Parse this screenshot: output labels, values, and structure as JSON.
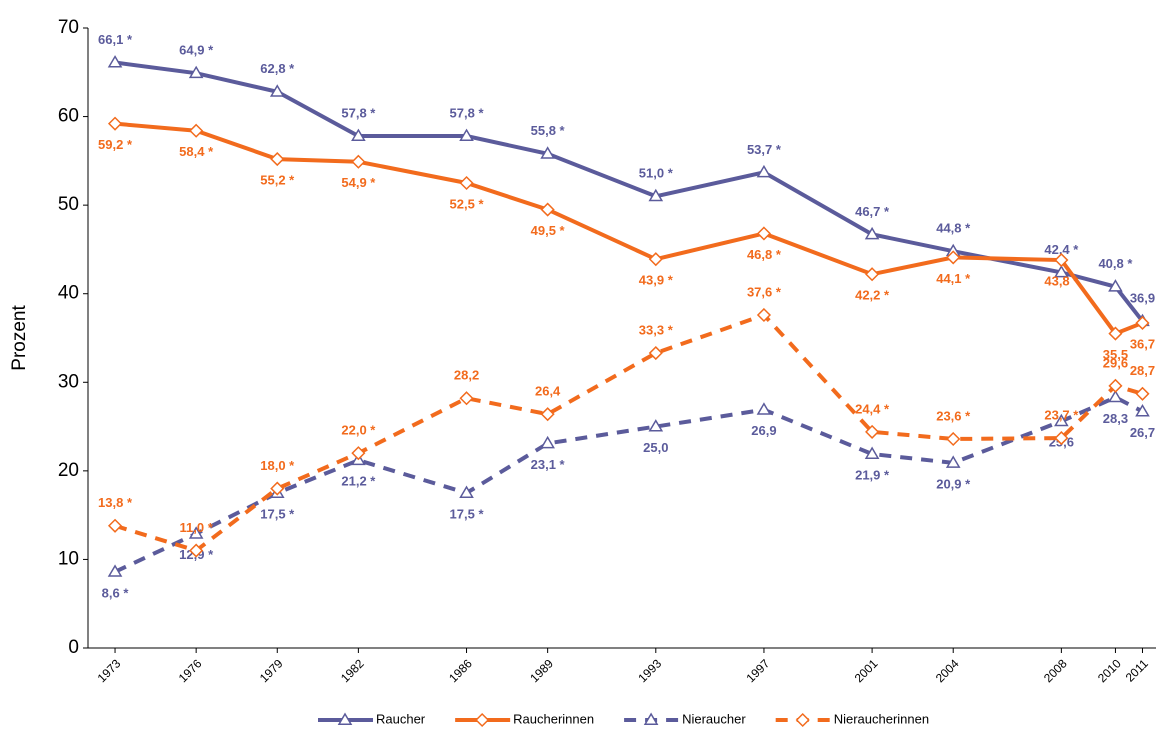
{
  "chart_data": {
    "type": "line",
    "y_label": "Prozent",
    "x": [
      1973,
      1976,
      1979,
      1982,
      1986,
      1989,
      1993,
      1997,
      2001,
      2004,
      2008,
      2010,
      2011
    ],
    "xlim": [
      1972,
      2011.5
    ],
    "xticks": [
      1973,
      1976,
      1979,
      1982,
      1986,
      1989,
      1993,
      1997,
      2001,
      2004,
      2008,
      2010,
      2011
    ],
    "ylim": [
      0,
      70
    ],
    "yticks": [
      0,
      10,
      20,
      30,
      40,
      50,
      60,
      70
    ],
    "series": [
      {
        "name": "Raucher",
        "color": "#5b5b9b",
        "dashed": false,
        "marker": "triangle",
        "label_side": "above",
        "values": [
          66.1,
          64.9,
          62.8,
          57.8,
          57.8,
          55.8,
          51.0,
          53.7,
          46.7,
          44.8,
          42.4,
          40.8,
          36.9
        ],
        "value_labels": [
          "66,1 *",
          "64,9 *",
          "62,8 *",
          "57,8 *",
          "57,8 *",
          "55,8 *",
          "51,0 *",
          "53,7 *",
          "46,7 *",
          "44,8 *",
          "42,4 *",
          "40,8 *",
          "36,9"
        ]
      },
      {
        "name": "Raucherinnen",
        "color": "#f26b1d",
        "dashed": false,
        "marker": "diamond",
        "label_side": "below",
        "values": [
          59.2,
          58.4,
          55.2,
          54.9,
          52.5,
          49.5,
          43.9,
          46.8,
          42.2,
          44.1,
          43.8,
          35.5,
          36.7
        ],
        "value_labels": [
          "59,2 *",
          "58,4 *",
          "55,2 *",
          "54,9 *",
          "52,5 *",
          "49,5 *",
          "43,9 *",
          "46,8 *",
          "42,2 *",
          "44,1 *",
          "43,8 *",
          "35,5",
          "36,7"
        ]
      },
      {
        "name": "Nieraucher",
        "color": "#5b5b9b",
        "dashed": true,
        "marker": "triangle",
        "label_side": "below",
        "values": [
          8.6,
          12.9,
          17.5,
          21.2,
          17.5,
          23.1,
          25.0,
          26.9,
          21.9,
          20.9,
          25.6,
          28.3,
          26.7
        ],
        "value_labels": [
          "8,6 *",
          "12,9 *",
          "17,5 *",
          "21,2 *",
          "17,5 *",
          "23,1 *",
          "25,0",
          "26,9",
          "21,9 *",
          "20,9 *",
          "25,6",
          "28,3",
          "26,7"
        ]
      },
      {
        "name": "Nieraucherinnen",
        "color": "#f26b1d",
        "dashed": true,
        "marker": "diamond",
        "label_side": "above",
        "values": [
          13.8,
          11.0,
          18.0,
          22.0,
          28.2,
          26.4,
          33.3,
          37.6,
          24.4,
          23.6,
          23.7,
          29.6,
          28.7
        ],
        "value_labels": [
          "13,8 *",
          "11,0 *",
          "18,0 *",
          "22,0 *",
          "28,2",
          "26,4",
          "33,3 *",
          "37,6 *",
          "24,4 *",
          "23,6 *",
          "23,7 *",
          "29,6",
          "28,7"
        ]
      }
    ]
  }
}
